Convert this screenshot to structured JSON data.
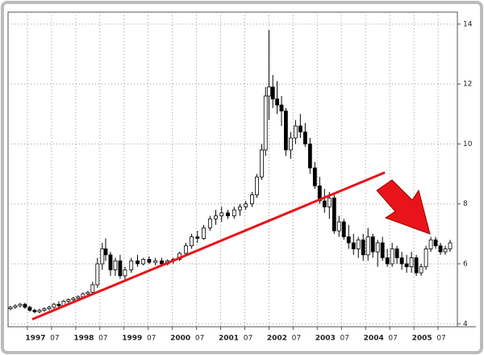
{
  "chart_data": {
    "type": "candlestick",
    "x": [
      1996.65,
      1996.75,
      1996.85,
      1996.95,
      1997.05,
      1997.15,
      1997.25,
      1997.35,
      1997.45,
      1997.55,
      1997.65,
      1997.75,
      1997.85,
      1997.95,
      1998.05,
      1998.15,
      1998.25,
      1998.35,
      1998.45,
      1998.55,
      1998.62,
      1998.72,
      1998.82,
      1998.92,
      1999.02,
      1999.15,
      1999.28,
      1999.4,
      1999.52,
      1999.65,
      1999.78,
      1999.9,
      2000.02,
      2000.15,
      2000.28,
      2000.4,
      2000.52,
      2000.65,
      2000.78,
      2000.9,
      2001.02,
      2001.15,
      2001.28,
      2001.4,
      2001.52,
      2001.65,
      2001.75,
      2001.85,
      2001.93,
      2002.0,
      2002.08,
      2002.17,
      2002.26,
      2002.35,
      2002.45,
      2002.55,
      2002.65,
      2002.75,
      2002.85,
      2002.95,
      2003.05,
      2003.15,
      2003.25,
      2003.35,
      2003.45,
      2003.55,
      2003.65,
      2003.75,
      2003.85,
      2003.95,
      2004.05,
      2004.15,
      2004.25,
      2004.35,
      2004.45,
      2004.55,
      2004.65,
      2004.75,
      2004.85,
      2004.95,
      2005.05,
      2005.15,
      2005.25,
      2005.35,
      2005.45,
      2005.55,
      2005.65,
      2005.75
    ],
    "open": [
      4.5,
      4.55,
      4.6,
      4.65,
      4.55,
      4.45,
      4.4,
      4.45,
      4.5,
      4.55,
      4.65,
      4.6,
      4.75,
      4.8,
      4.85,
      4.9,
      5.0,
      5.05,
      5.3,
      6.0,
      6.5,
      6.3,
      5.8,
      6.1,
      5.6,
      5.8,
      6.1,
      6.0,
      6.15,
      6.05,
      6.1,
      6.0,
      6.1,
      6.15,
      6.35,
      6.6,
      6.9,
      6.85,
      7.2,
      7.5,
      7.6,
      7.7,
      7.6,
      7.8,
      7.9,
      8.0,
      8.3,
      8.9,
      9.8,
      11.6,
      11.9,
      11.5,
      11.3,
      11.1,
      9.8,
      10.2,
      10.6,
      10.4,
      10.0,
      9.2,
      8.6,
      8.1,
      7.9,
      8.2,
      7.1,
      7.4,
      6.9,
      6.7,
      6.5,
      6.8,
      6.3,
      6.9,
      6.4,
      6.7,
      6.2,
      6.0,
      6.5,
      6.2,
      6.0,
      5.9,
      6.2,
      5.7,
      5.9,
      6.5,
      6.8,
      6.6,
      6.4,
      6.5
    ],
    "high": [
      4.6,
      4.65,
      4.7,
      4.7,
      4.6,
      4.5,
      4.5,
      4.55,
      4.6,
      4.7,
      4.75,
      4.8,
      4.85,
      4.9,
      4.95,
      5.05,
      5.1,
      5.4,
      6.2,
      6.7,
      6.85,
      6.4,
      6.2,
      6.3,
      5.9,
      6.2,
      6.3,
      6.2,
      6.25,
      6.2,
      6.2,
      6.15,
      6.2,
      6.4,
      6.7,
      7.0,
      7.1,
      7.3,
      7.6,
      7.8,
      7.9,
      7.8,
      7.9,
      8.0,
      8.1,
      8.4,
      9.0,
      10.0,
      11.9,
      13.8,
      12.3,
      12.1,
      11.6,
      11.2,
      10.4,
      10.8,
      11.0,
      10.7,
      10.2,
      9.4,
      8.9,
      8.5,
      8.4,
      8.3,
      7.6,
      7.5,
      7.3,
      7.0,
      6.9,
      7.0,
      7.2,
      7.0,
      6.8,
      6.9,
      6.5,
      6.7,
      6.6,
      6.4,
      6.3,
      6.4,
      6.3,
      6.0,
      6.6,
      6.9,
      6.9,
      6.7,
      6.6,
      6.8
    ],
    "low": [
      4.45,
      4.5,
      4.55,
      4.5,
      4.4,
      4.35,
      4.35,
      4.4,
      4.45,
      4.5,
      4.55,
      4.55,
      4.65,
      4.7,
      4.75,
      4.85,
      4.9,
      5.0,
      5.2,
      5.8,
      6.1,
      5.6,
      5.6,
      5.5,
      5.4,
      5.7,
      5.9,
      5.95,
      6.0,
      5.95,
      5.95,
      5.95,
      6.0,
      6.1,
      6.3,
      6.5,
      6.7,
      6.8,
      7.1,
      7.3,
      7.4,
      7.5,
      7.5,
      7.6,
      7.8,
      7.9,
      8.2,
      8.8,
      9.6,
      10.8,
      11.2,
      11.0,
      10.6,
      9.6,
      9.5,
      10.0,
      10.2,
      9.9,
      9.0,
      8.5,
      8.0,
      7.7,
      7.5,
      7.0,
      6.9,
      6.8,
      6.5,
      6.3,
      6.2,
      6.1,
      6.1,
      6.2,
      5.9,
      6.1,
      5.9,
      5.9,
      6.0,
      5.8,
      5.7,
      5.7,
      5.6,
      5.6,
      5.8,
      6.4,
      6.5,
      6.3,
      6.3,
      6.4
    ],
    "close": [
      4.55,
      4.6,
      4.65,
      4.55,
      4.45,
      4.4,
      4.45,
      4.5,
      4.55,
      4.65,
      4.6,
      4.75,
      4.8,
      4.85,
      4.9,
      5.0,
      5.05,
      5.3,
      6.0,
      6.5,
      6.3,
      5.8,
      6.1,
      5.6,
      5.8,
      6.1,
      6.0,
      6.15,
      6.05,
      6.1,
      6.0,
      6.1,
      6.15,
      6.35,
      6.6,
      6.9,
      6.85,
      7.2,
      7.5,
      7.6,
      7.7,
      7.6,
      7.8,
      7.9,
      8.0,
      8.3,
      8.9,
      9.8,
      11.6,
      11.9,
      11.5,
      11.3,
      11.1,
      9.8,
      10.2,
      10.6,
      10.4,
      10.0,
      9.2,
      8.6,
      8.1,
      7.9,
      8.2,
      7.1,
      7.4,
      6.9,
      6.7,
      6.5,
      6.8,
      6.3,
      6.9,
      6.4,
      6.7,
      6.2,
      6.0,
      6.5,
      6.2,
      6.0,
      5.9,
      6.2,
      5.7,
      5.9,
      6.5,
      6.8,
      6.6,
      6.4,
      6.5,
      6.7
    ],
    "up_color": "#ffffff",
    "down_color": "#000000",
    "trendline": {
      "x": [
        1997.1,
        2004.4
      ],
      "y": [
        4.15,
        9.05
      ],
      "color": "#e8141a"
    },
    "xlim": [
      1996.6,
      2005.9
    ],
    "ylim": [
      3.9,
      14.4
    ],
    "xticks": [
      1997,
      {
        "value": 1997.5,
        "label": "07"
      },
      1998,
      {
        "value": 1998.5,
        "label": "07"
      },
      1999,
      {
        "value": 1999.5,
        "label": "07"
      },
      2000,
      {
        "value": 2000.5,
        "label": "07"
      },
      2001,
      {
        "value": 2001.5,
        "label": "07"
      },
      2002,
      {
        "value": 2002.5,
        "label": "07"
      },
      2003,
      {
        "value": 2003.5,
        "label": "07"
      },
      2004,
      {
        "value": 2004.5,
        "label": "07"
      },
      2005,
      {
        "value": 2005.5,
        "label": "07"
      }
    ],
    "yticks": [
      4,
      6,
      8,
      10,
      12,
      14
    ],
    "grid": true
  }
}
